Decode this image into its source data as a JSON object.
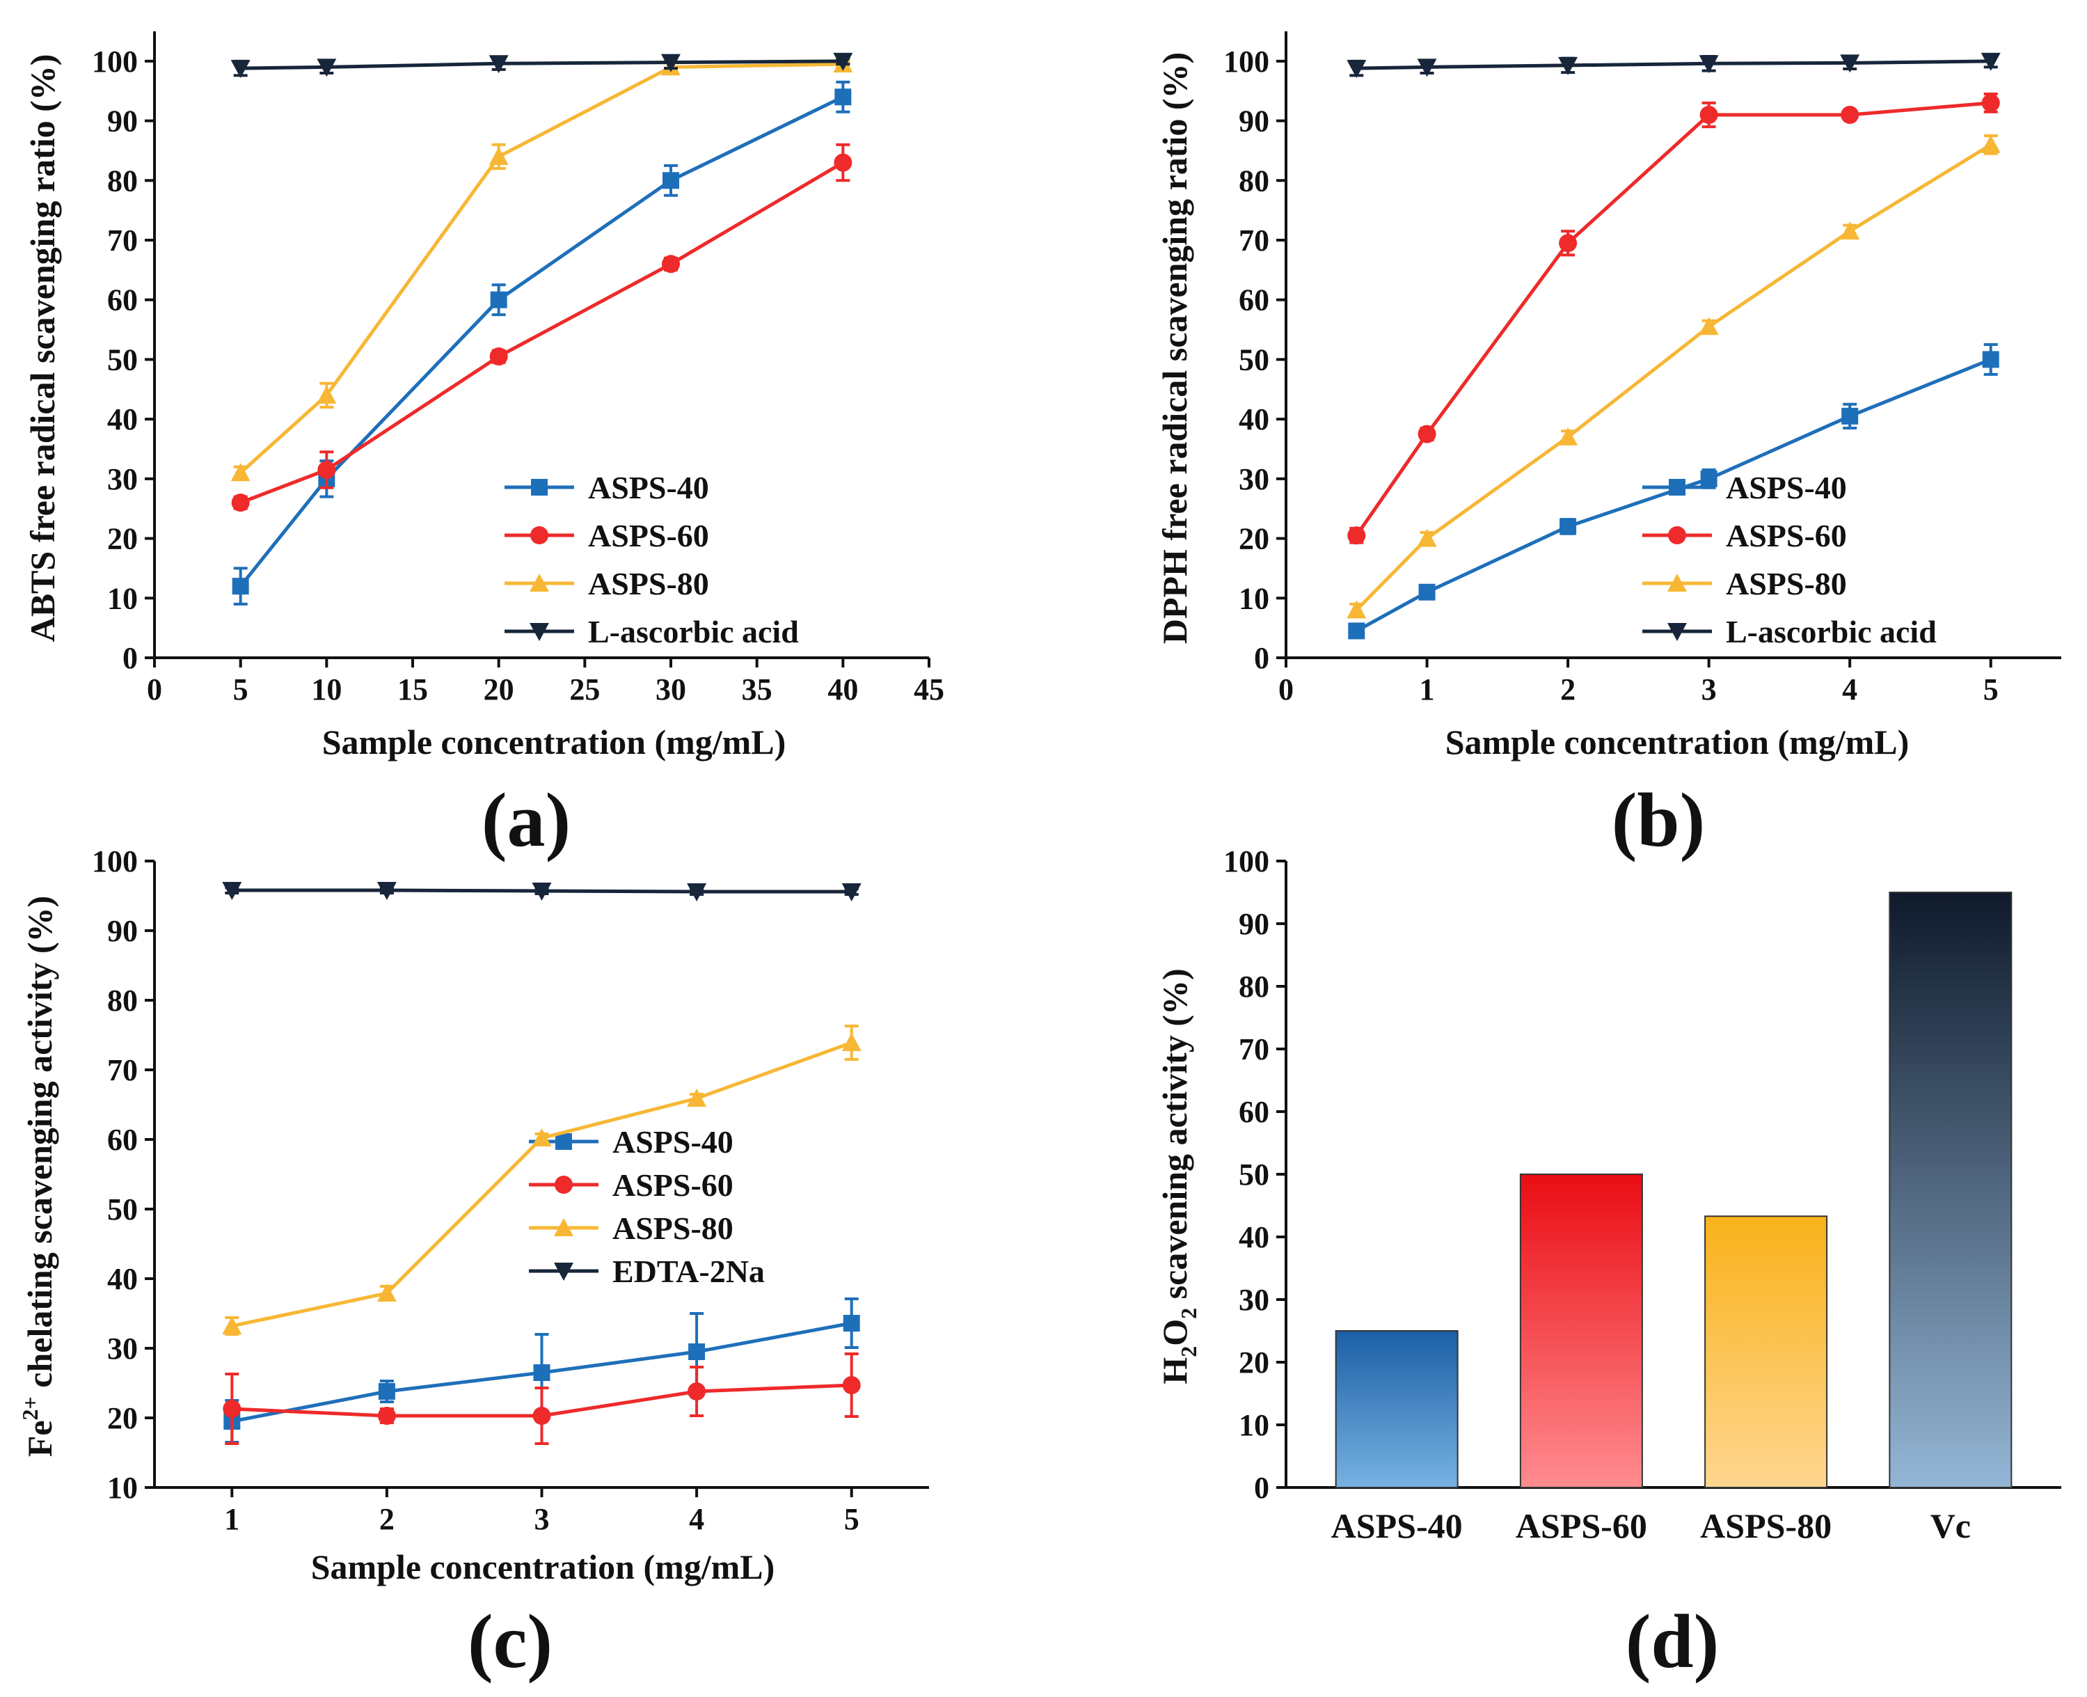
{
  "figure": {
    "colors": {
      "ASPS-40": "#1e6fba",
      "ASPS-60": "#ee2a2a",
      "ASPS-80": "#f7b735",
      "control": "#17263a"
    }
  },
  "chart_data": [
    {
      "id": "a",
      "panel_label": "(a)",
      "type": "line",
      "xlabel": "Sample concentration (mg/mL)",
      "ylabel": "ABTS free radical scavenging ratio (%)",
      "xlim": [
        0,
        45
      ],
      "ylim": [
        0,
        105
      ],
      "xticks": [
        0,
        5,
        10,
        15,
        20,
        25,
        30,
        35,
        40,
        45
      ],
      "yticks": [
        0,
        10,
        20,
        30,
        40,
        50,
        60,
        70,
        80,
        90,
        100
      ],
      "legend_position": "bottom-right",
      "series": [
        {
          "name": "ASPS-40",
          "color": "#1e6fba",
          "marker": "square",
          "x": [
            5,
            10,
            20,
            30,
            40
          ],
          "values": [
            12,
            30,
            60,
            80,
            94
          ],
          "errors": [
            3,
            3,
            2.5,
            2.5,
            2.5
          ]
        },
        {
          "name": "ASPS-60",
          "color": "#ee2a2a",
          "marker": "circle",
          "x": [
            5,
            10,
            20,
            30,
            40
          ],
          "values": [
            26,
            31.5,
            50.5,
            66,
            83
          ],
          "errors": [
            1,
            3,
            1,
            1,
            3
          ]
        },
        {
          "name": "ASPS-80",
          "color": "#f7b735",
          "marker": "triangle-up",
          "x": [
            5,
            10,
            20,
            30,
            40
          ],
          "values": [
            31,
            44,
            84,
            99,
            99.5
          ],
          "errors": [
            1,
            2,
            2,
            1,
            0.5
          ]
        },
        {
          "name": "L-ascorbic acid",
          "color": "#17263a",
          "marker": "triangle-down",
          "x": [
            5,
            10,
            20,
            30,
            40
          ],
          "values": [
            98.8,
            99,
            99.6,
            99.8,
            100
          ],
          "errors": [
            1.2,
            1,
            1,
            1,
            0.5
          ]
        }
      ]
    },
    {
      "id": "b",
      "panel_label": "(b)",
      "type": "line",
      "xlabel": "Sample concentration (mg/mL)",
      "ylabel": "DPPH free radical scavenging ratio (%)",
      "xlim": [
        0,
        5.5
      ],
      "ylim": [
        0,
        105
      ],
      "xticks": [
        0,
        1,
        2,
        3,
        4,
        5
      ],
      "yticks": [
        0,
        10,
        20,
        30,
        40,
        50,
        60,
        70,
        80,
        90,
        100
      ],
      "legend_position": "bottom-right",
      "series": [
        {
          "name": "ASPS-40",
          "color": "#1e6fba",
          "marker": "square",
          "x": [
            0.5,
            1,
            2,
            3,
            4,
            5
          ],
          "values": [
            4.5,
            11,
            22,
            30,
            40.5,
            50
          ],
          "errors": [
            1,
            1,
            1.2,
            1.5,
            2,
            2.5
          ]
        },
        {
          "name": "ASPS-60",
          "color": "#ee2a2a",
          "marker": "circle",
          "x": [
            0.5,
            1,
            2,
            3,
            4,
            5
          ],
          "values": [
            20.5,
            37.5,
            69.5,
            91,
            91,
            93
          ],
          "errors": [
            1.2,
            1,
            2,
            2,
            0.5,
            1.5
          ]
        },
        {
          "name": "ASPS-80",
          "color": "#f7b735",
          "marker": "triangle-up",
          "x": [
            0.5,
            1,
            2,
            3,
            4,
            5
          ],
          "values": [
            8,
            20,
            37,
            55.5,
            71.5,
            86
          ],
          "errors": [
            1,
            1,
            1,
            1,
            1,
            1.5
          ]
        },
        {
          "name": "L-ascorbic acid",
          "color": "#17263a",
          "marker": "triangle-down",
          "x": [
            0.5,
            1,
            2,
            3,
            4,
            5
          ],
          "values": [
            98.8,
            99,
            99.3,
            99.6,
            99.7,
            100
          ],
          "errors": [
            1.2,
            1,
            1.2,
            1.2,
            1,
            1
          ]
        }
      ]
    },
    {
      "id": "c",
      "panel_label": "(c)",
      "type": "line",
      "xlabel": "Sample concentration (mg/mL)",
      "ylabel_prefix": "Fe",
      "ylabel_superscript": "2+",
      "ylabel_suffix": " chelating  scavenging activity (%)",
      "xlim": [
        0.5,
        5.5
      ],
      "ylim": [
        10,
        100
      ],
      "xticks": [
        1,
        2,
        3,
        4,
        5
      ],
      "yticks": [
        10,
        20,
        30,
        40,
        50,
        60,
        70,
        80,
        90,
        100
      ],
      "legend_position": "center-right",
      "series": [
        {
          "name": "ASPS-40",
          "color": "#1e6fba",
          "marker": "square",
          "x": [
            1,
            2,
            3,
            4,
            5
          ],
          "values": [
            19.5,
            23.8,
            26.5,
            29.5,
            33.6
          ],
          "errors": [
            3,
            1.5,
            5.5,
            5.5,
            3.5
          ]
        },
        {
          "name": "ASPS-60",
          "color": "#ee2a2a",
          "marker": "circle",
          "x": [
            1,
            2,
            3,
            4,
            5
          ],
          "values": [
            21.3,
            20.3,
            20.3,
            23.8,
            24.7
          ],
          "errors": [
            5,
            1,
            4,
            3.5,
            4.5
          ]
        },
        {
          "name": "ASPS-80",
          "color": "#f7b735",
          "marker": "triangle-up",
          "x": [
            1,
            2,
            3,
            4,
            5
          ],
          "values": [
            33.2,
            37.9,
            60.2,
            65.9,
            73.9
          ],
          "errors": [
            1.2,
            1,
            0.6,
            0.6,
            2.4
          ]
        },
        {
          "name": "EDTA-2Na",
          "color": "#17263a",
          "marker": "triangle-down",
          "x": [
            1,
            2,
            3,
            4,
            5
          ],
          "values": [
            95.8,
            95.8,
            95.7,
            95.6,
            95.6
          ],
          "errors": [
            0.4,
            0.4,
            0.4,
            0.4,
            0.4
          ]
        }
      ]
    },
    {
      "id": "d",
      "panel_label": "(d)",
      "type": "bar",
      "ylabel_prefix": "H",
      "ylabel_sub1": "2",
      "ylabel_mid": "O",
      "ylabel_sub2": "2",
      "ylabel_suffix": " scavening activity (%)",
      "ylim": [
        0,
        100
      ],
      "yticks": [
        0,
        10,
        20,
        30,
        40,
        50,
        60,
        70,
        80,
        90,
        100
      ],
      "categories": [
        "ASPS-40",
        "ASPS-60",
        "ASPS-80",
        "Vc"
      ],
      "values": [
        25,
        50,
        43.3,
        95
      ],
      "bar_colors": [
        [
          "#1c5fa6",
          "#76b2e2"
        ],
        [
          "#ea0d14",
          "#ff8c90"
        ],
        [
          "#f9b21a",
          "#ffd690"
        ],
        [
          "#0f1a2b",
          "#94b6d6"
        ]
      ]
    }
  ]
}
